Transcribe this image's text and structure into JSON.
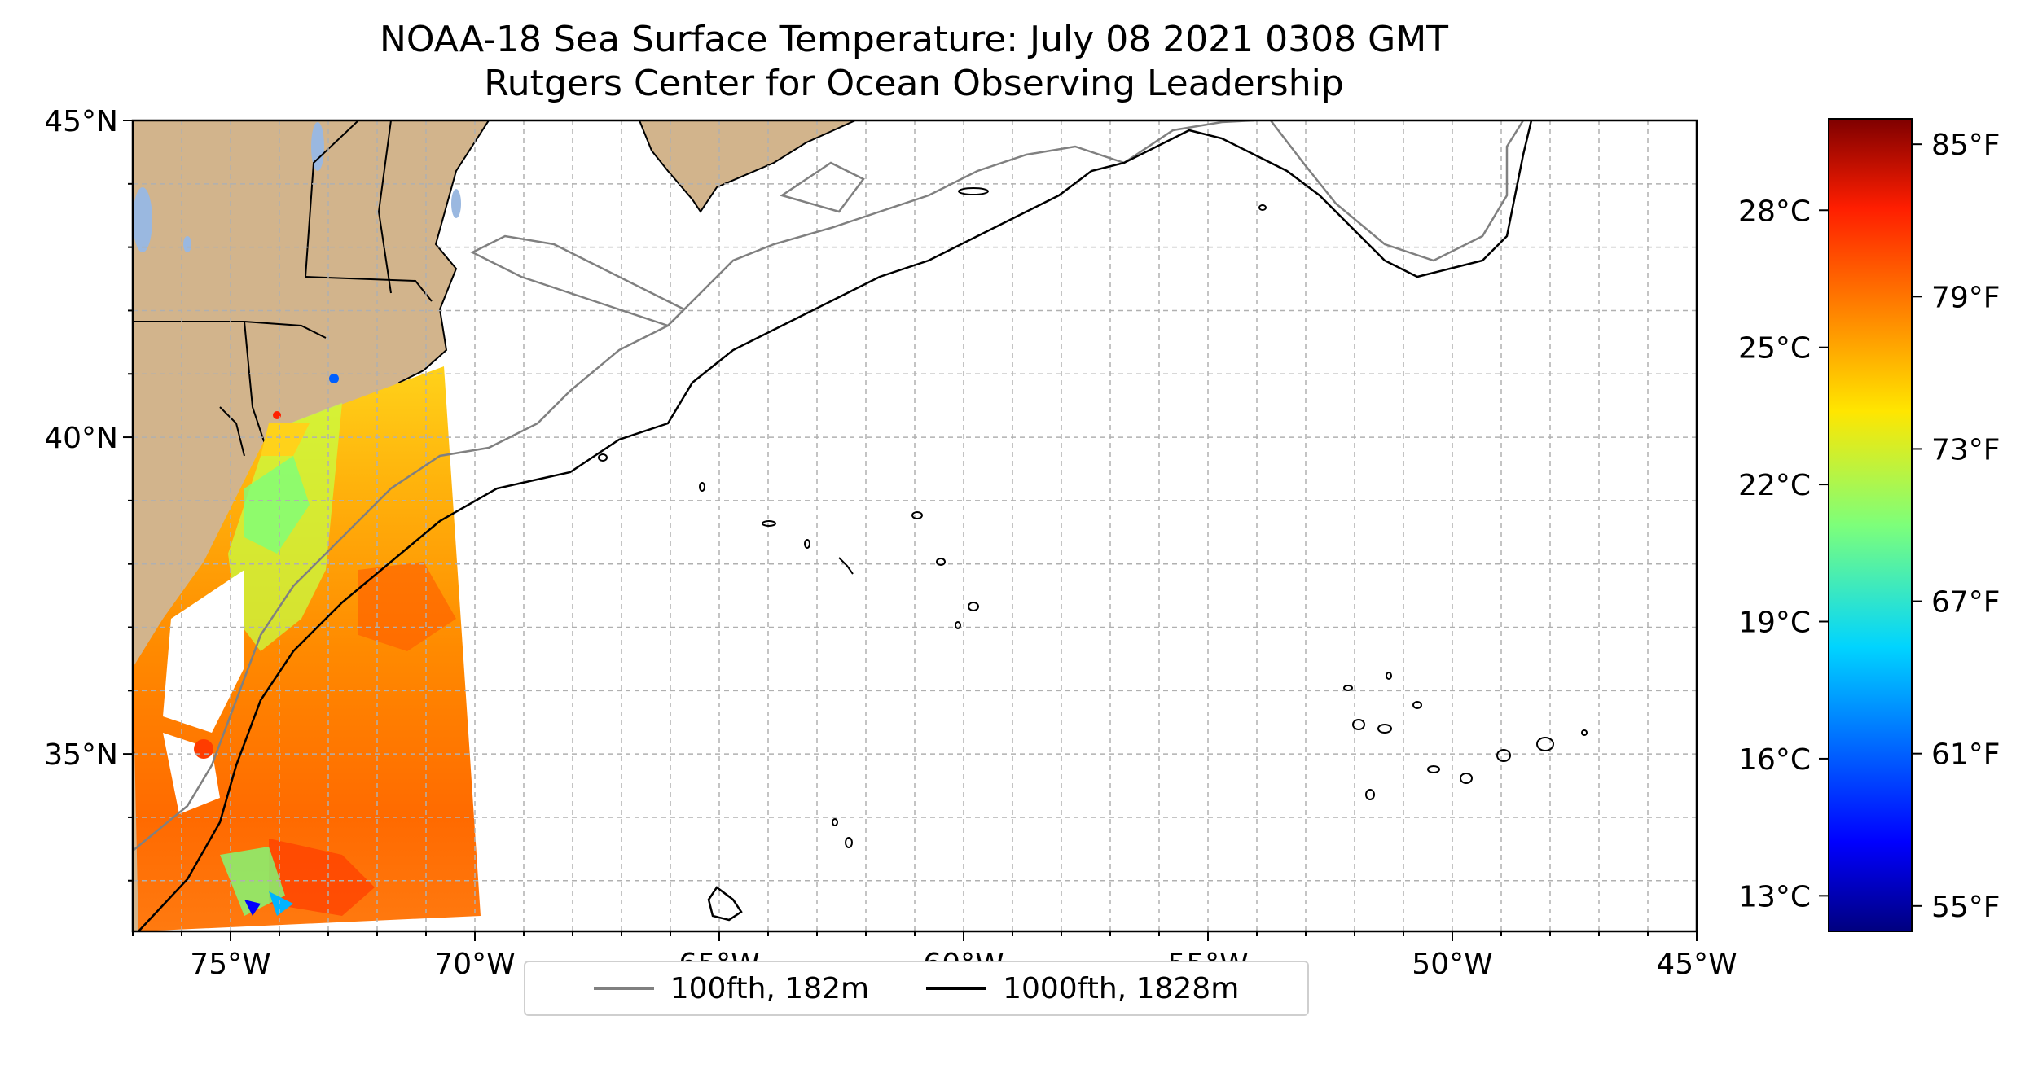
{
  "title": {
    "line1": "NOAA-18 Sea Surface Temperature: July 08 2021 0308 GMT",
    "line2": "Rutgers Center for Ocean Observing Leadership"
  },
  "map": {
    "lon_range": [
      -77,
      -45
    ],
    "lat_range": [
      32.2,
      45
    ],
    "x_ticks": [
      "75°W",
      "70°W",
      "65°W",
      "60°W",
      "55°W",
      "50°W",
      "45°W"
    ],
    "y_ticks": [
      "35°N",
      "40°N",
      "45°N"
    ],
    "gridlines": "dashed, 1° spacing",
    "land_color": "#d2b48c",
    "lake_color": "#9ab8e0",
    "ocean_color": "#ffffff",
    "sst_swath": "satellite swath off the U.S. East Coast from ~77°W to ~70°W"
  },
  "legend": {
    "entries": [
      {
        "label": "100fth, 182m",
        "color": "#808080"
      },
      {
        "label": "1000fth, 1828m",
        "color": "#000000"
      }
    ]
  },
  "colorbar": {
    "colormap": "jet",
    "celsius_ticks": [
      "13°C",
      "16°C",
      "19°C",
      "22°C",
      "25°C",
      "28°C"
    ],
    "fahrenheit_ticks": [
      "55°F",
      "61°F",
      "67°F",
      "73°F",
      "79°F",
      "85°F"
    ],
    "range_f": [
      54,
      86
    ]
  }
}
